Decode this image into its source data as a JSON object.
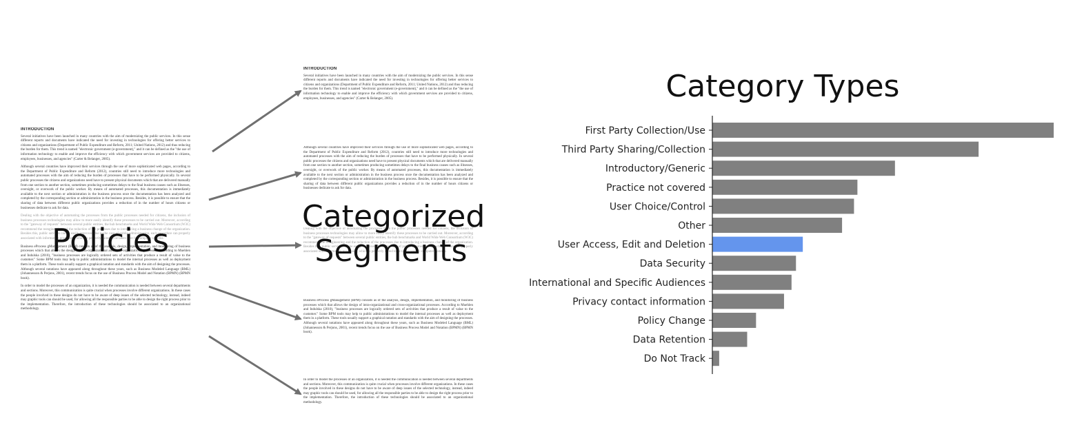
{
  "policies_label": "Policies",
  "segments_label_line1": "Categorized",
  "segments_label_line2": "Segments",
  "document": {
    "heading": "INTRODUCTION",
    "para1": "Several initiatives have been launched in many countries with the aim of modernizing the public services. In this sense different reports and documents have indicated the need for investing in technologies for offering better services to citizens and organizations (Department of Public Expenditure and Reform, 2011; United Nations, 2012) and thus reducing the burden for them. This trend is named \"electronic government (e-government),\" and it can be defined as the \"the use of information technology to enable and improve the efficiency with which government services are provided to citizens, employees, businesses, and agencies\" (Carter & Belanger, 2005).",
    "para2": "Although several countries have improved their services through the use of more sophisticated web pages, according to the Department of Public Expenditure and Reform (2012), countries still need to introduce more technologies and automated processes with the aim of reducing the burden of processes that have to be performed physically. In several public processes the citizens and organizations need have to present physical documents which that are delivered manually from one section to another section, sometimes producing sometimes delays to the final business causes such as illnesses, oversight, or overwork of the public worker. By means of automated processes, this documentation is immediately available to the next section or administration in the business process once the documentation has been analyzed and completed by the corresponding section or administration in the business process. Besides, it is possible to ensure that the sharing of data between different public organizations provides a reduction of in the number of hours citizens or businesses dedicate to ask for data.",
    "para3": "Dealing with the objective of automating the processes from the public processes needed for citizens, the inclusion of business processes technologies may allow to more easily identify these processes to be carried out. Moreover, according to the \"gateway of requests\" between several public entities, the hub benchmarks and World Wide Web Consortium (W3C) recommend the reengineering and the reduction of the processes due to introducing a business change of the organization. Besides this, public services can be easily improved due to the case of public administration, each procedure can properly associated with information processing, which is perfectly suited to be taken over by computer systems.",
    "para4": "Business eProcess gManagement (BPM) consists as of the analysis, design, implementation, and monitoring of business processes which that allows the design of intra-organizational and cross-organizational processes. According to Muehlen and Indulska (2010), \"business processes are logically ordered sets of activities that produce a result of value to the customer.\" Some BPM tools may help to public administrations to model the internal processes as well as deployment them in a platform. These tools usually support a graphical notation and standards with the aim of designing the processes. Although several notations have appeared along throughout these years, such as Business Modeled Language (BML) (Johannesson & Perjons, 2001), recent trends focus on the use of Business Process Model and Notation (BPMN) (BPMN book).",
    "para5": "In order to model the processes of an organization, it is needed the communication is needed between several departments and sections. Moreover, this communication is quite crucial when processes involve different organizations. In these cases the people involved in these designs do not have to be aware of deep issues of the selected technology, instead, indeed may graphic tools can should be used, for allowing all the responsible parties to be able to design the right process prior to the implementation. Therefore, the introduction of these technologies should be associated to an organizational methodology."
  },
  "chart_data": {
    "type": "bar",
    "orientation": "horizontal",
    "title": "Category Types",
    "xlabel": "",
    "ylabel": "",
    "highlight_color": "#6495ED",
    "bar_color": "#808080",
    "categories": [
      "First Party Collection/Use",
      "Third Party Sharing/Collection",
      "Introductory/Generic",
      "Practice not covered",
      "User Choice/Control",
      "Other",
      "User Access, Edit and Deletion",
      "Data Security",
      "International and Specific Audiences",
      "Privacy contact information",
      "Policy Change",
      "Data Retention",
      "Do Not Track"
    ],
    "values": [
      100,
      78,
      53.5,
      42.5,
      41.5,
      38,
      26.5,
      24.5,
      23.2,
      21,
      12.8,
      10.2,
      2
    ],
    "highlighted_category": "User Access, Edit and Deletion",
    "xlim": [
      0,
      100
    ]
  }
}
